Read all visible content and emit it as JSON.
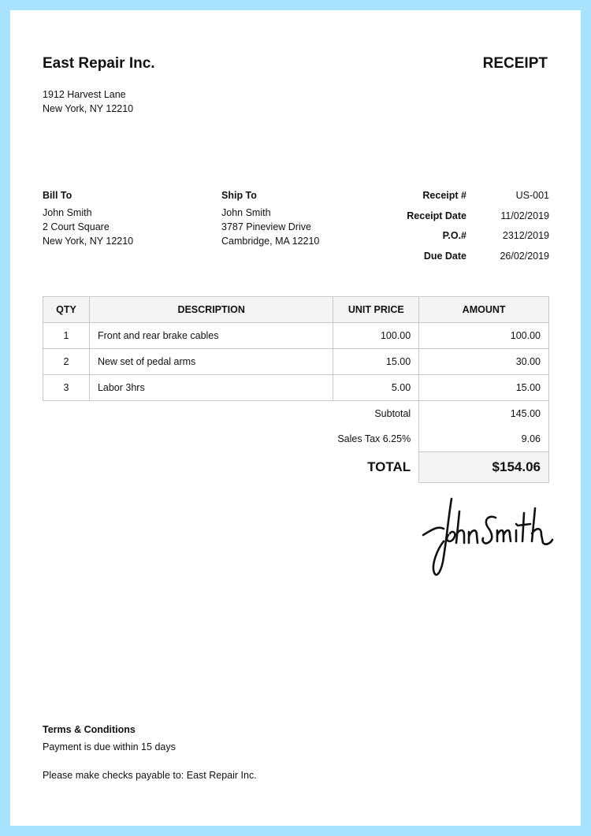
{
  "company": {
    "name": "East Repair Inc.",
    "address_line1": "1912 Harvest Lane",
    "address_line2": "New York, NY 12210"
  },
  "doc_title": "RECEIPT",
  "bill_to": {
    "label": "Bill To",
    "name": "John Smith",
    "line1": "2 Court Square",
    "line2": "New York, NY 12210"
  },
  "ship_to": {
    "label": "Ship To",
    "name": "John Smith",
    "line1": "3787 Pineview Drive",
    "line2": "Cambridge, MA 12210"
  },
  "meta": [
    {
      "label": "Receipt #",
      "value": "US-001"
    },
    {
      "label": "Receipt Date",
      "value": "11/02/2019"
    },
    {
      "label": "P.O.#",
      "value": "2312/2019"
    },
    {
      "label": "Due Date",
      "value": "26/02/2019"
    }
  ],
  "table": {
    "headers": [
      "QTY",
      "DESCRIPTION",
      "UNIT PRICE",
      "AMOUNT"
    ],
    "rows": [
      [
        "1",
        "Front and rear brake cables",
        "100.00",
        "100.00"
      ],
      [
        "2",
        "New set of pedal arms",
        "15.00",
        "30.00"
      ],
      [
        "3",
        "Labor 3hrs",
        "5.00",
        "15.00"
      ]
    ]
  },
  "totals": {
    "subtotal_label": "Subtotal",
    "subtotal": "145.00",
    "tax_label": "Sales Tax 6.25%",
    "tax": "9.06",
    "total_label": "TOTAL",
    "total": "$154.06"
  },
  "signature": "John Smith",
  "terms": {
    "title": "Terms & Conditions",
    "line1": "Payment is due within 15 days",
    "line2": "Please make checks payable to: East Repair Inc."
  }
}
